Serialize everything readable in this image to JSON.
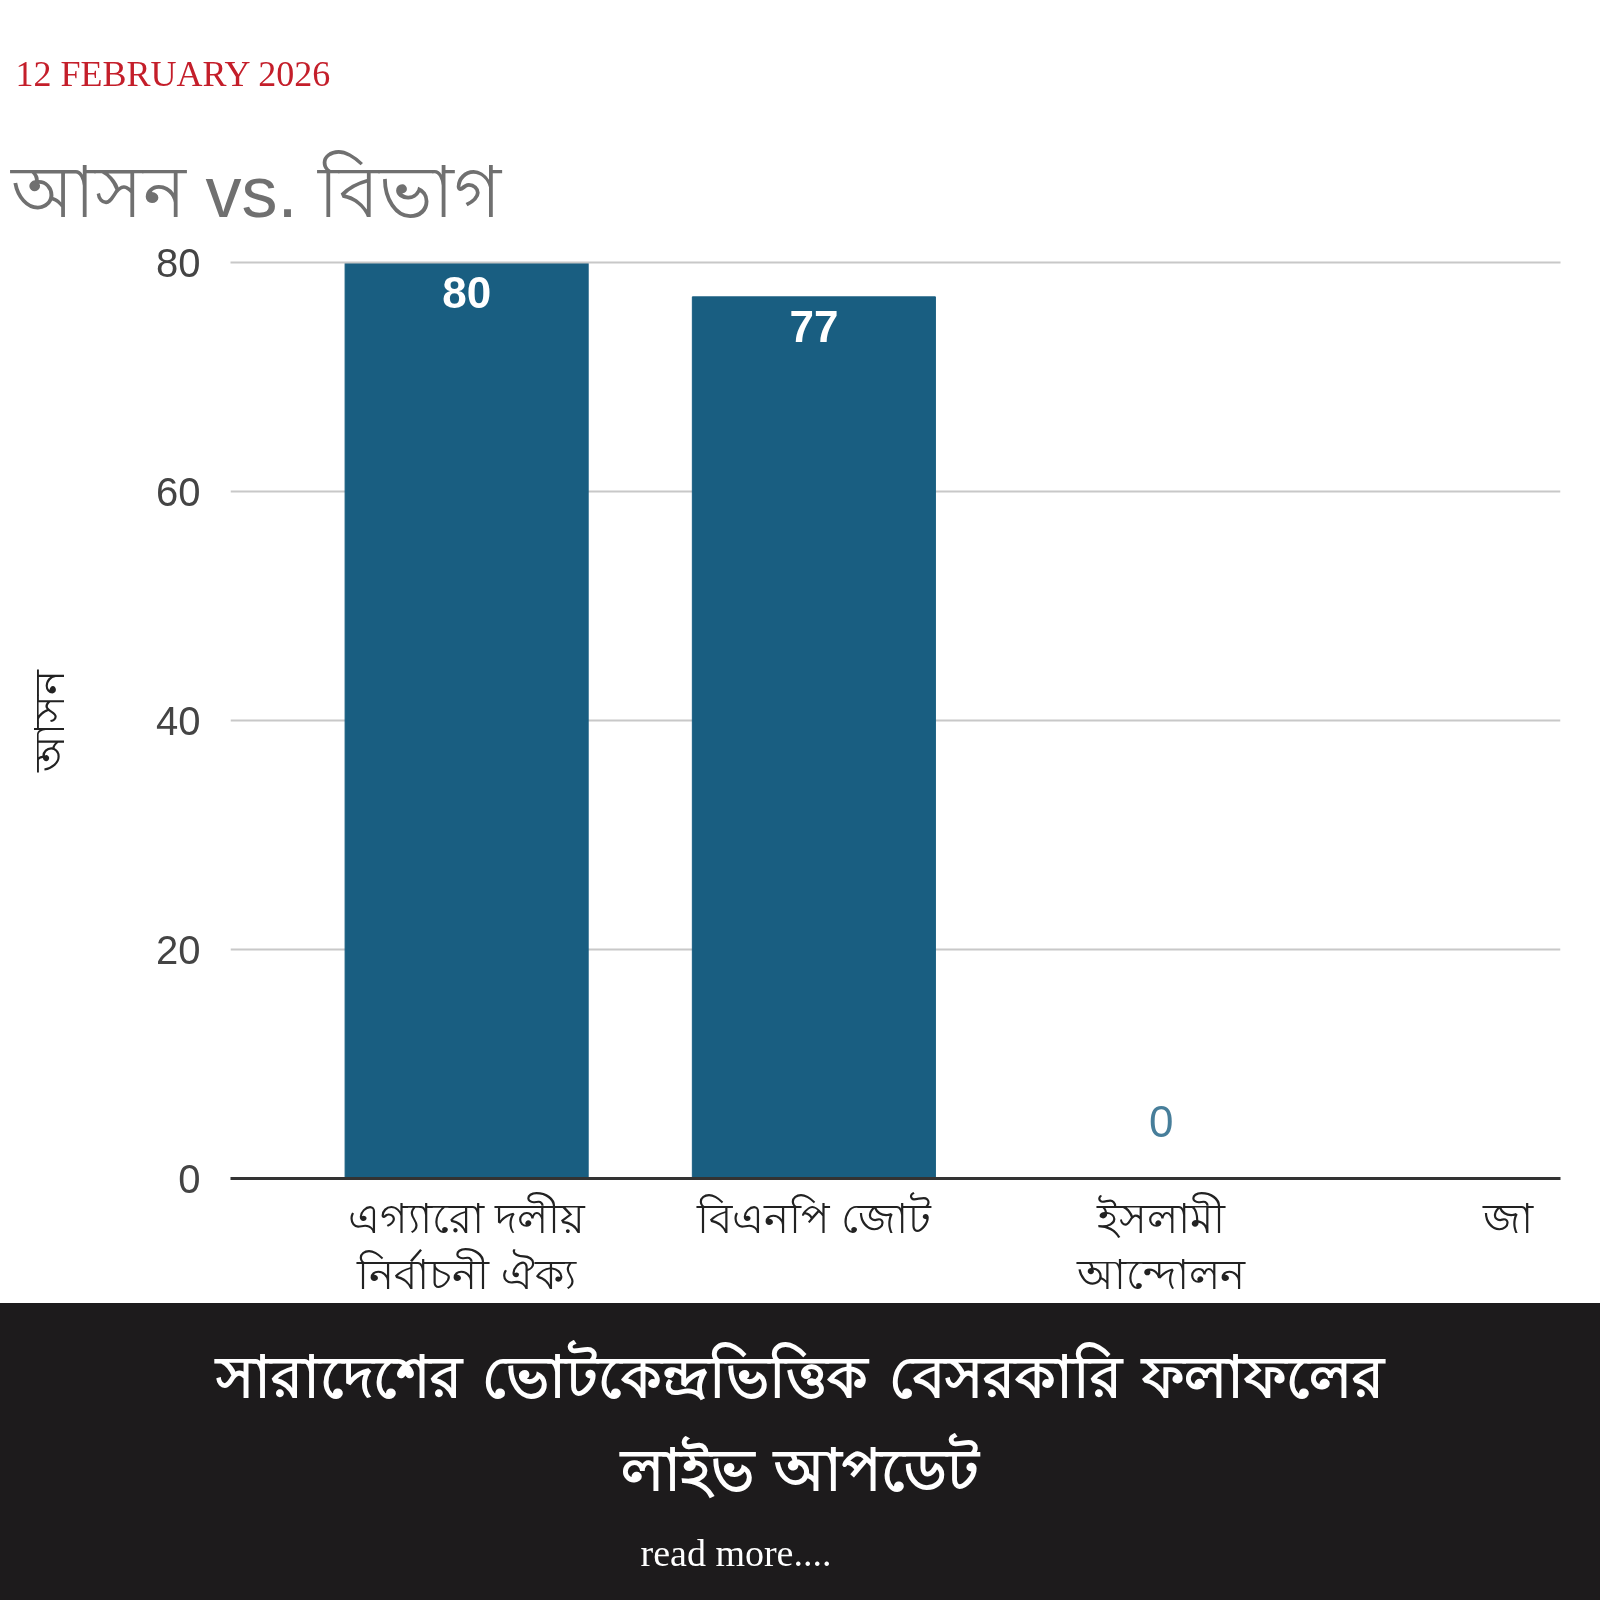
{
  "chart_data": {
    "type": "bar",
    "title": "আসন vs. বিভাগ",
    "subtitle": "সারাদেশের ভোটকেন্দ্রভিত্তিক বেসরকারি ফলাফলের লাইভ আপডেট",
    "ylabel": "আসন",
    "annotations": [
      "12 FEBRUARY 2026",
      "read more...."
    ],
    "categories": [
      "এগ্যারো দলীয় নির্বাচনী ঐক্য",
      "বিএনপি জোট",
      "ইসলামী আন্দোলন",
      "জা"
    ],
    "values": [
      80,
      77,
      0,
      null
    ],
    "color": "#195e81",
    "ylim": [
      0,
      80
    ],
    "yticks": [
      0,
      20,
      40,
      60,
      80
    ],
    "grid": "y",
    "data_labels": true
  }
}
